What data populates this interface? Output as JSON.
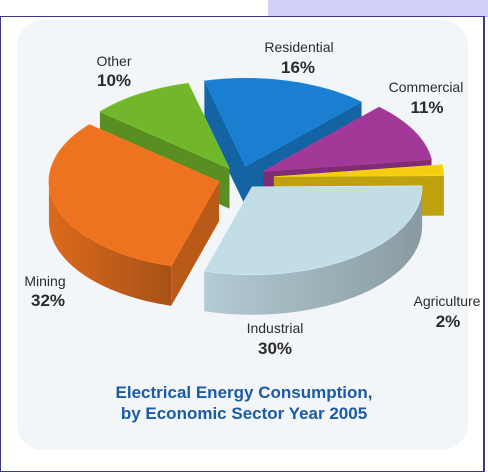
{
  "chart_data": {
    "type": "pie",
    "title_line1": "Electrical Energy Consumption,",
    "title_line2": "by Economic Sector Year 2005",
    "slices": [
      {
        "label": "Residential",
        "value": 16,
        "value_text": "16%",
        "color": "#1a7fd1"
      },
      {
        "label": "Commercial",
        "value": 11,
        "value_text": "11%",
        "color": "#a23897"
      },
      {
        "label": "Agriculture",
        "value": 2,
        "value_text": "2%",
        "color": "#f5cd13"
      },
      {
        "label": "Industrial",
        "value": 30,
        "value_text": "30%",
        "color": "#c3dde6"
      },
      {
        "label": "Mining",
        "value": 32,
        "value_text": "32%",
        "color": "#ee7320"
      },
      {
        "label": "Other",
        "value": 10,
        "value_text": "10%",
        "color": "#72b72b"
      }
    ]
  }
}
